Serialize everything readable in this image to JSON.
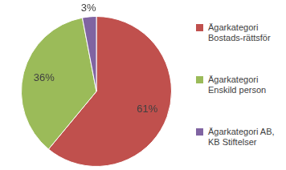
{
  "chart_data": {
    "type": "pie",
    "categories": [
      "Ägarkategori Bostads-rättsför",
      "Ägarkategori Enskild person",
      "Ägarkategori AB, KB Stiftelser"
    ],
    "values": [
      61,
      36,
      3
    ],
    "value_labels": [
      "61%",
      "36%",
      "3%"
    ],
    "colors": [
      "#c0504d",
      "#9bbb59",
      "#8064a2"
    ],
    "data_labels": true,
    "legend": "right"
  }
}
